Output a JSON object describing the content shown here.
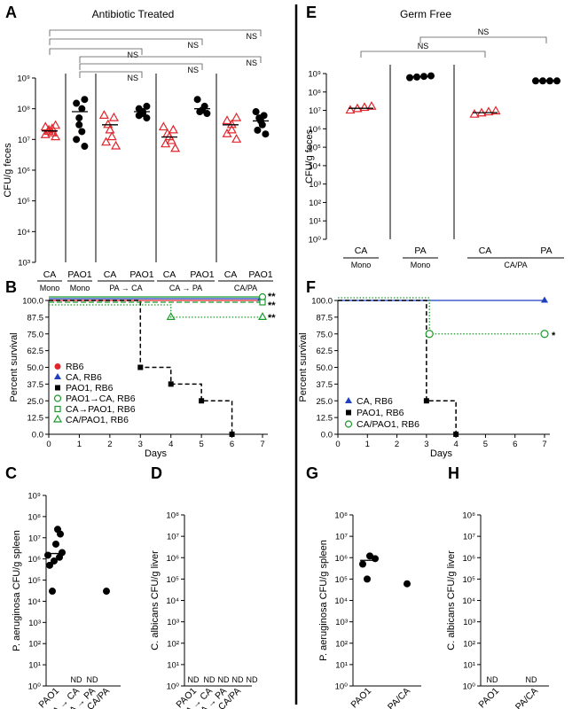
{
  "panels": {
    "A": {
      "letter": "A",
      "title": "Antibiotic Treated"
    },
    "B": {
      "letter": "B"
    },
    "C": {
      "letter": "C"
    },
    "D": {
      "letter": "D"
    },
    "E": {
      "letter": "E",
      "title": "Germ Free"
    },
    "F": {
      "letter": "F"
    },
    "G": {
      "letter": "G"
    },
    "H": {
      "letter": "H"
    }
  },
  "colors": {
    "red": "#e0252b",
    "black": "#000000",
    "blue": "#1f3fbf",
    "green": "#1a9a2a"
  },
  "chart_data": [
    {
      "id": "A",
      "type": "scatter",
      "title": "Antibiotic Treated",
      "ylabel": "CFU/g feces",
      "yscale": "log",
      "ylim": [
        1000,
        1000000000
      ],
      "yticks": [
        "10³",
        "10⁴",
        "10⁵",
        "10⁶",
        "10⁷",
        "10⁸",
        "10⁹"
      ],
      "categories": [
        "CA",
        "PAO1",
        "CA",
        "PAO1",
        "CA",
        "PAO1",
        "CA",
        "PAO1"
      ],
      "group_labels": [
        "Mono",
        "Mono",
        "PA → CA",
        "CA → PA",
        "CA/PA"
      ],
      "series": [
        {
          "values": [
            12000000,
            14000000,
            16000000,
            18000000,
            20000000,
            22000000,
            25000000,
            28000000
          ],
          "mean": 19000000
        },
        {
          "values": [
            6000000,
            10000000,
            18000000,
            30000000,
            50000000,
            100000000,
            150000000,
            200000000
          ],
          "mean": 80000000
        },
        {
          "values": [
            6000000,
            8000000,
            12000000,
            20000000,
            30000000,
            50000000,
            60000000
          ],
          "mean": 30000000
        },
        {
          "values": [
            50000000,
            60000000,
            70000000,
            80000000,
            100000000,
            120000000
          ],
          "mean": 80000000
        },
        {
          "values": [
            5000000,
            7000000,
            9000000,
            12000000,
            15000000,
            20000000,
            25000000
          ],
          "mean": 12000000
        },
        {
          "values": [
            70000000,
            80000000,
            90000000,
            120000000,
            200000000
          ],
          "mean": 100000000
        },
        {
          "values": [
            10000000,
            15000000,
            20000000,
            30000000,
            40000000,
            50000000
          ],
          "mean": 30000000
        },
        {
          "values": [
            15000000,
            20000000,
            30000000,
            40000000,
            50000000,
            60000000,
            80000000
          ],
          "mean": 40000000
        }
      ],
      "annotations": [
        "NS",
        "NS",
        "NS",
        "NS",
        "NS",
        "NS"
      ]
    },
    {
      "id": "B",
      "type": "line",
      "xlabel": "Days",
      "ylabel": "Percent survival",
      "xlim": [
        0,
        7
      ],
      "ylim": [
        0,
        100
      ],
      "xticks": [
        "0",
        "1",
        "2",
        "3",
        "4",
        "5",
        "6",
        "7"
      ],
      "yticks": [
        "0.0",
        "12.5",
        "25.0",
        "37.5",
        "50.0",
        "62.5",
        "75.0",
        "87.5",
        "100.0"
      ],
      "series": [
        {
          "name": "RB6",
          "x": [
            0,
            7
          ],
          "y": [
            100,
            100
          ]
        },
        {
          "name": "CA, RB6",
          "x": [
            0,
            7
          ],
          "y": [
            100,
            100
          ]
        },
        {
          "name": "PAO1, RB6",
          "x": [
            0,
            3,
            3,
            4,
            4,
            5,
            5,
            6,
            6
          ],
          "y": [
            100,
            100,
            50,
            50,
            37.5,
            37.5,
            25,
            25,
            0
          ]
        },
        {
          "name": "PAO1→CA, RB6",
          "x": [
            0,
            7
          ],
          "y": [
            100,
            100
          ]
        },
        {
          "name": "CA→PAO1, RB6",
          "x": [
            0,
            7
          ],
          "y": [
            100,
            100
          ]
        },
        {
          "name": "CA/PAO1, RB6",
          "x": [
            0,
            4,
            4,
            7
          ],
          "y": [
            100,
            100,
            87.5,
            87.5
          ]
        }
      ],
      "annotations": [
        "**",
        "**",
        "**"
      ]
    },
    {
      "id": "C",
      "type": "scatter",
      "ylabel": "P. aeruginosa CFU/g spleen",
      "yscale": "log",
      "ylim": [
        1,
        1000000000
      ],
      "yticks": [
        "10⁰",
        "10¹",
        "10²",
        "10³",
        "10⁴",
        "10⁵",
        "10⁶",
        "10⁷",
        "10⁸",
        "10⁹"
      ],
      "categories": [
        "PAO1",
        "PA → CA",
        "CA → PA",
        "CA/PA"
      ],
      "series": [
        {
          "values": [
            30000,
            500000,
            800000,
            1200000,
            1500000,
            2000000,
            5000000,
            15000000,
            25000000
          ],
          "mean": 1800000
        },
        {
          "values": [],
          "label": "ND"
        },
        {
          "values": [],
          "label": "ND"
        },
        {
          "values": [
            30000
          ]
        }
      ]
    },
    {
      "id": "D",
      "type": "scatter",
      "ylabel": "C. albicans CFU/g liver",
      "yscale": "log",
      "ylim": [
        1,
        100000000
      ],
      "yticks": [
        "10⁰",
        "10¹",
        "10²",
        "10³",
        "10⁴",
        "10⁵",
        "10⁶",
        "10⁷",
        "10⁸"
      ],
      "categories": [
        "PAO1",
        "PA → CA",
        "CA → PA",
        "CA/PA"
      ],
      "nd_labels": [
        "ND",
        "ND",
        "ND",
        "ND",
        "ND"
      ]
    },
    {
      "id": "E",
      "type": "scatter",
      "title": "Germ Free",
      "ylabel": "CFU/g feces",
      "yscale": "log",
      "ylim": [
        1,
        1000000000
      ],
      "yticks": [
        "10⁰",
        "10¹",
        "10²",
        "10³",
        "10⁴",
        "10⁵",
        "10⁶",
        "10⁷",
        "10⁸",
        "10⁹"
      ],
      "categories": [
        "CA",
        "PA",
        "CA",
        "PA"
      ],
      "group_labels": [
        "Mono",
        "Mono",
        "CA/PA"
      ],
      "series": [
        {
          "values": [
            10000000,
            12000000,
            14000000,
            16000000
          ],
          "mean": 13000000
        },
        {
          "values": [
            600000000,
            650000000,
            700000000,
            750000000
          ],
          "mean": 680000000
        },
        {
          "values": [
            6000000,
            7000000,
            8000000,
            9000000
          ],
          "mean": 7500000
        },
        {
          "values": [
            400000000,
            400000000,
            400000000,
            400000000
          ],
          "mean": 400000000
        }
      ],
      "annotations": [
        "NS",
        "NS"
      ]
    },
    {
      "id": "F",
      "type": "line",
      "xlabel": "Days",
      "ylabel": "Percent survival",
      "xlim": [
        0,
        7
      ],
      "ylim": [
        0,
        100
      ],
      "xticks": [
        "0",
        "1",
        "2",
        "3",
        "4",
        "5",
        "6",
        "7"
      ],
      "yticks": [
        "0.0",
        "12.5",
        "25.0",
        "37.5",
        "50.0",
        "62.5",
        "75.0",
        "87.5",
        "100.0"
      ],
      "series": [
        {
          "name": "CA, RB6",
          "x": [
            0,
            7
          ],
          "y": [
            100,
            100
          ]
        },
        {
          "name": "PAO1, RB6",
          "x": [
            0,
            3,
            3,
            4,
            4
          ],
          "y": [
            100,
            100,
            25,
            25,
            0
          ]
        },
        {
          "name": "CA/PAO1, RB6",
          "x": [
            0,
            3.1,
            3.1,
            7
          ],
          "y": [
            100,
            100,
            75,
            75
          ]
        }
      ],
      "annotations": [
        "*"
      ]
    },
    {
      "id": "G",
      "type": "scatter",
      "ylabel": "P. aeruginosa CFU/g spleen",
      "yscale": "log",
      "ylim": [
        1,
        100000000
      ],
      "yticks": [
        "10⁰",
        "10¹",
        "10²",
        "10³",
        "10⁴",
        "10⁵",
        "10⁶",
        "10⁷",
        "10⁸"
      ],
      "categories": [
        "PAO1",
        "PA/CA"
      ],
      "series": [
        {
          "values": [
            100000,
            500000,
            900000,
            1200000
          ],
          "mean": 750000
        },
        {
          "values": [
            60000
          ]
        }
      ]
    },
    {
      "id": "H",
      "type": "scatter",
      "ylabel": "C. albicans CFU/g liver",
      "yscale": "log",
      "ylim": [
        1,
        100000000
      ],
      "yticks": [
        "10⁰",
        "10¹",
        "10²",
        "10³",
        "10⁴",
        "10⁵",
        "10⁶",
        "10⁷",
        "10⁸"
      ],
      "categories": [
        "PAO1",
        "PA/CA"
      ],
      "nd_labels": [
        "ND",
        "ND"
      ]
    }
  ]
}
